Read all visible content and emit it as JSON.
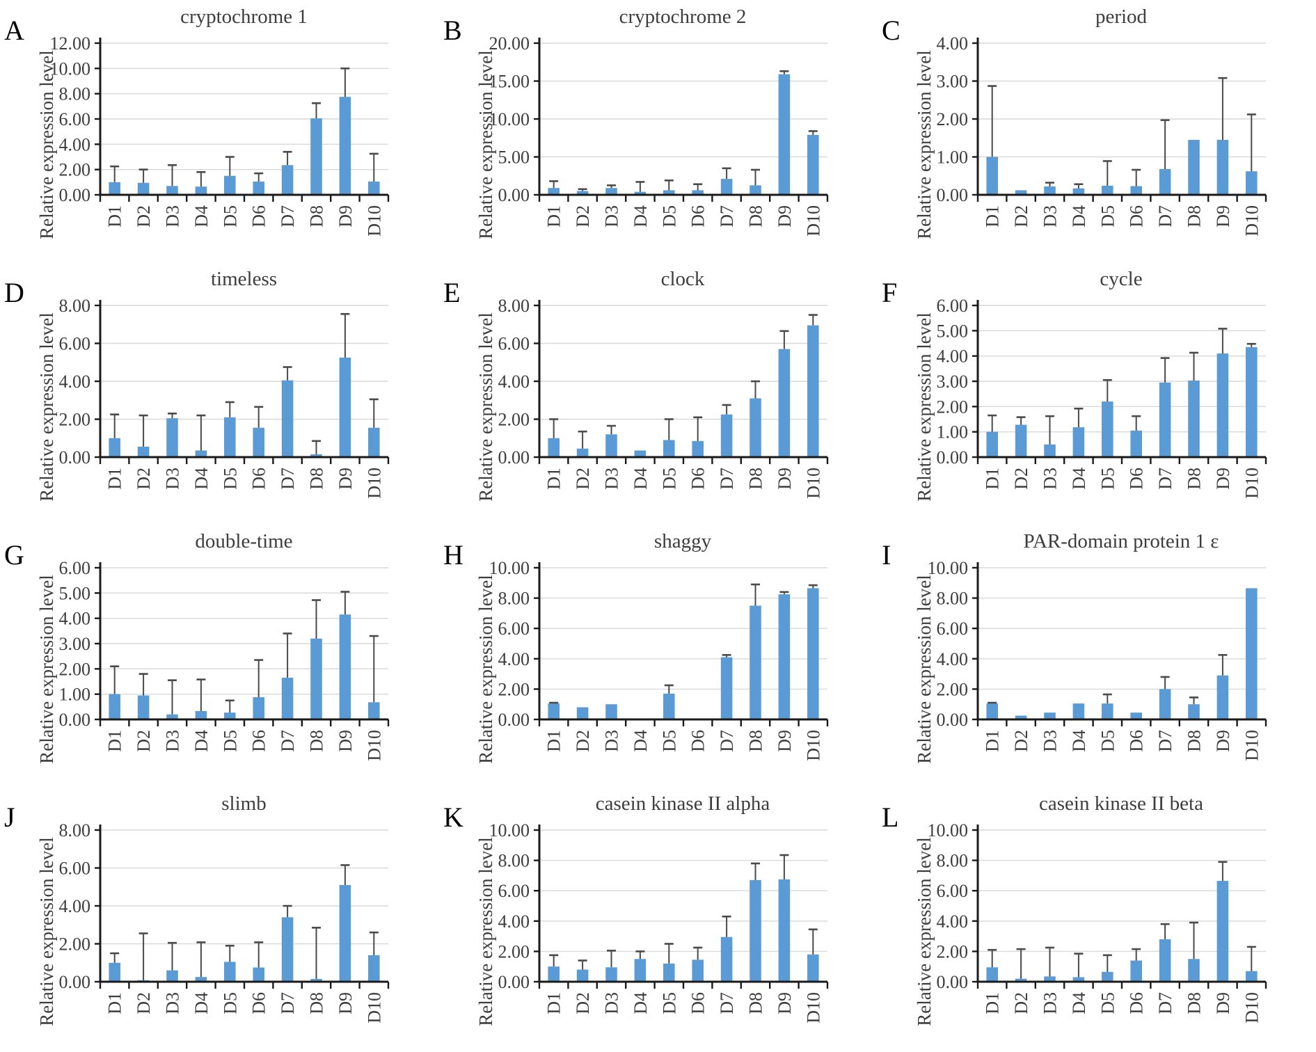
{
  "style": {
    "bar_color": "#5B9BD5",
    "error_color": "#4a4a4a",
    "grid_color": "#d9d9d9",
    "axis_color": "#1a1a1a",
    "text_color": "#3d3d3d"
  },
  "chart_data": [
    {
      "panel": "A",
      "title": "cryptochrome 1",
      "type": "bar",
      "ylabel": "Relative expression level",
      "xlabel": "",
      "categories": [
        "D1",
        "D2",
        "D3",
        "D4",
        "D5",
        "D6",
        "D7",
        "D8",
        "D9",
        "D10"
      ],
      "values": [
        1.0,
        0.95,
        0.7,
        0.65,
        1.5,
        1.05,
        2.35,
        6.05,
        7.75,
        1.05
      ],
      "errors_up": [
        1.25,
        1.05,
        1.65,
        1.15,
        1.5,
        0.65,
        1.05,
        1.2,
        2.25,
        2.2
      ],
      "ylim": [
        0,
        12
      ],
      "ytick_step": 2,
      "grid": true,
      "legend": "none"
    },
    {
      "panel": "B",
      "title": "cryptochrome 2",
      "type": "bar",
      "ylabel": "Relative expression level",
      "xlabel": "",
      "categories": [
        "D1",
        "D2",
        "D3",
        "D4",
        "D5",
        "D6",
        "D7",
        "D8",
        "D9",
        "D10"
      ],
      "values": [
        0.9,
        0.5,
        0.9,
        0.4,
        0.6,
        0.6,
        2.1,
        1.25,
        15.9,
        7.9
      ],
      "errors_up": [
        0.9,
        0.25,
        0.35,
        1.3,
        1.3,
        0.8,
        1.4,
        2.05,
        0.4,
        0.5
      ],
      "ylim": [
        0,
        20
      ],
      "ytick_step": 5,
      "grid": true,
      "legend": "none"
    },
    {
      "panel": "C",
      "title": "period",
      "type": "bar",
      "ylabel": "Relative expression level",
      "xlabel": "",
      "categories": [
        "D1",
        "D2",
        "D3",
        "D4",
        "D5",
        "D6",
        "D7",
        "D8",
        "D9",
        "D10"
      ],
      "values": [
        1.0,
        0.12,
        0.22,
        0.17,
        0.24,
        0.23,
        0.68,
        1.45,
        1.45,
        0.62
      ],
      "errors_up": [
        1.87,
        0,
        0.1,
        0.11,
        0.65,
        0.43,
        1.29,
        0,
        1.63,
        1.5
      ],
      "ylim": [
        0,
        4
      ],
      "ytick_step": 1,
      "grid": true,
      "legend": "none"
    },
    {
      "panel": "D",
      "title": "timeless",
      "type": "bar",
      "ylabel": "Relative expression level",
      "xlabel": "",
      "categories": [
        "D1",
        "D2",
        "D3",
        "D4",
        "D5",
        "D6",
        "D7",
        "D8",
        "D9",
        "D10"
      ],
      "values": [
        1.0,
        0.55,
        2.05,
        0.35,
        2.1,
        1.55,
        4.05,
        0.15,
        5.25,
        1.55
      ],
      "errors_up": [
        1.25,
        1.65,
        0.25,
        1.85,
        0.8,
        1.1,
        0.7,
        0.7,
        2.3,
        1.5
      ],
      "ylim": [
        0,
        8
      ],
      "ytick_step": 2,
      "grid": true,
      "legend": "none"
    },
    {
      "panel": "E",
      "title": "clock",
      "type": "bar",
      "ylabel": "Relative expression level",
      "xlabel": "",
      "categories": [
        "D1",
        "D2",
        "D3",
        "D4",
        "D5",
        "D6",
        "D7",
        "D8",
        "D9",
        "D10"
      ],
      "values": [
        1.0,
        0.45,
        1.2,
        0.35,
        0.9,
        0.85,
        2.25,
        3.1,
        5.7,
        6.95
      ],
      "errors_up": [
        1.0,
        0.9,
        0.45,
        0,
        1.1,
        1.25,
        0.5,
        0.9,
        0.95,
        0.55
      ],
      "ylim": [
        0,
        8
      ],
      "ytick_step": 2,
      "grid": true,
      "legend": "none"
    },
    {
      "panel": "F",
      "title": "cycle",
      "type": "bar",
      "ylabel": "Relative expression level",
      "xlabel": "",
      "categories": [
        "D1",
        "D2",
        "D3",
        "D4",
        "D5",
        "D6",
        "D7",
        "D8",
        "D9",
        "D10"
      ],
      "values": [
        1.0,
        1.28,
        0.5,
        1.18,
        2.2,
        1.05,
        2.95,
        3.03,
        4.1,
        4.35
      ],
      "errors_up": [
        0.65,
        0.3,
        1.12,
        0.74,
        0.85,
        0.57,
        0.97,
        1.1,
        0.98,
        0.13
      ],
      "ylim": [
        0,
        6
      ],
      "ytick_step": 1,
      "grid": true,
      "legend": "none"
    },
    {
      "panel": "G",
      "title": "double-time",
      "type": "bar",
      "ylabel": "Relative expression level",
      "xlabel": "",
      "categories": [
        "D1",
        "D2",
        "D3",
        "D4",
        "D5",
        "D6",
        "D7",
        "D8",
        "D9",
        "D10"
      ],
      "values": [
        1.0,
        0.95,
        0.2,
        0.33,
        0.27,
        0.88,
        1.65,
        3.2,
        4.15,
        0.68
      ],
      "errors_up": [
        1.1,
        0.85,
        1.35,
        1.25,
        0.48,
        1.47,
        1.75,
        1.52,
        0.9,
        2.62
      ],
      "ylim": [
        0,
        6
      ],
      "ytick_step": 1,
      "grid": true,
      "legend": "none"
    },
    {
      "panel": "H",
      "title": "shaggy",
      "type": "bar",
      "ylabel": "Relative expression level",
      "xlabel": "",
      "categories": [
        "D1",
        "D2",
        "D3",
        "D4",
        "D5",
        "D6",
        "D7",
        "D8",
        "D9",
        "D10"
      ],
      "values": [
        1.05,
        0.8,
        1.0,
        0,
        1.7,
        0,
        4.1,
        7.5,
        8.25,
        8.65
      ],
      "errors_up": [
        0.05,
        0,
        0,
        0,
        0.55,
        0,
        0.15,
        1.4,
        0.15,
        0.2
      ],
      "ylim": [
        0,
        10
      ],
      "ytick_step": 2,
      "grid": true,
      "legend": "none"
    },
    {
      "panel": "I",
      "title": "PAR-domain protein 1 ε",
      "type": "bar",
      "ylabel": "Relative expression level",
      "xlabel": "",
      "categories": [
        "D1",
        "D2",
        "D3",
        "D4",
        "D5",
        "D6",
        "D7",
        "D8",
        "D9",
        "D10"
      ],
      "values": [
        1.05,
        0.25,
        0.45,
        1.05,
        1.05,
        0.45,
        2.0,
        1.0,
        2.9,
        8.65
      ],
      "errors_up": [
        0.05,
        0,
        0,
        0,
        0.6,
        0,
        0.8,
        0.45,
        1.35,
        0
      ],
      "ylim": [
        0,
        10
      ],
      "ytick_step": 2,
      "grid": true,
      "legend": "none"
    },
    {
      "panel": "J",
      "title": "slimb",
      "type": "bar",
      "ylabel": "Relative expression level",
      "xlabel": "",
      "categories": [
        "D1",
        "D2",
        "D3",
        "D4",
        "D5",
        "D6",
        "D7",
        "D8",
        "D9",
        "D10"
      ],
      "values": [
        1.0,
        0.08,
        0.6,
        0.25,
        1.05,
        0.75,
        3.4,
        0.15,
        5.1,
        1.4
      ],
      "errors_up": [
        0.5,
        2.47,
        1.45,
        1.83,
        0.85,
        1.33,
        0.6,
        2.7,
        1.05,
        1.2
      ],
      "ylim": [
        0,
        8
      ],
      "ytick_step": 2,
      "grid": true,
      "legend": "none"
    },
    {
      "panel": "K",
      "title": "casein kinase II alpha",
      "type": "bar",
      "ylabel": "Relative expression level",
      "xlabel": "",
      "categories": [
        "D1",
        "D2",
        "D3",
        "D4",
        "D5",
        "D6",
        "D7",
        "D8",
        "D9",
        "D10"
      ],
      "values": [
        1.0,
        0.8,
        0.95,
        1.5,
        1.2,
        1.45,
        2.95,
        6.7,
        6.75,
        1.8
      ],
      "errors_up": [
        0.75,
        0.6,
        1.1,
        0.5,
        1.3,
        0.8,
        1.35,
        1.1,
        1.6,
        1.65
      ],
      "ylim": [
        0,
        10
      ],
      "ytick_step": 2,
      "grid": true,
      "legend": "none"
    },
    {
      "panel": "L",
      "title": "casein kinase II beta",
      "type": "bar",
      "ylabel": "Relative expression level",
      "xlabel": "",
      "categories": [
        "D1",
        "D2",
        "D3",
        "D4",
        "D5",
        "D6",
        "D7",
        "D8",
        "D9",
        "D10"
      ],
      "values": [
        0.95,
        0.2,
        0.35,
        0.3,
        0.65,
        1.4,
        2.8,
        1.5,
        6.65,
        0.7
      ],
      "errors_up": [
        1.15,
        1.95,
        1.9,
        1.55,
        1.1,
        0.75,
        1.0,
        2.4,
        1.25,
        1.6
      ],
      "ylim": [
        0,
        10
      ],
      "ytick_step": 2,
      "grid": true,
      "legend": "none"
    }
  ]
}
